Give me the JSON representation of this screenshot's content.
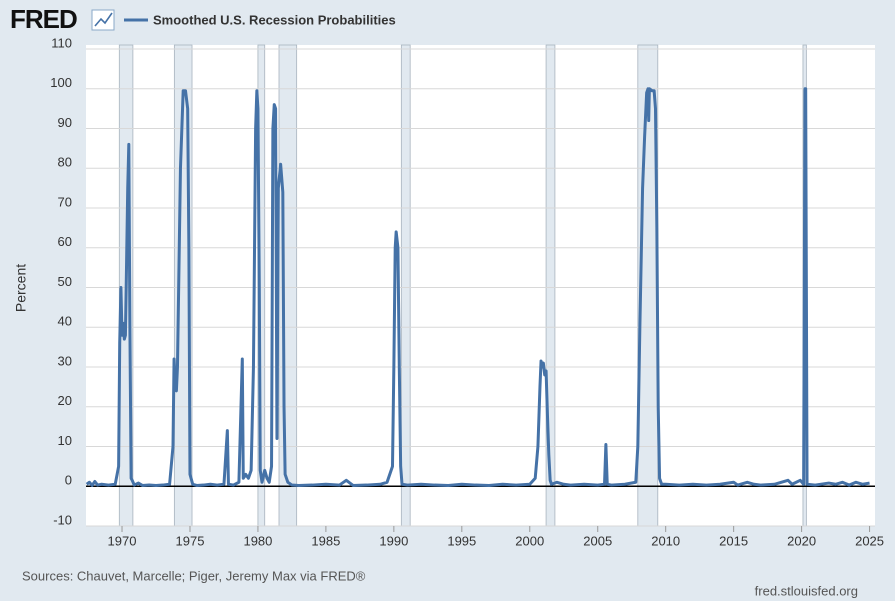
{
  "header": {
    "logo": "FRED"
  },
  "chart_data": {
    "type": "line",
    "y_label": "Percent",
    "xlim": [
      1967.35,
      2025.4
    ],
    "xticks": [
      1970,
      1975,
      1980,
      1985,
      1990,
      1995,
      2000,
      2005,
      2010,
      2015,
      2020,
      2025
    ],
    "ylim": [
      -10,
      110
    ],
    "yticks": [
      -10,
      0,
      10,
      20,
      30,
      40,
      50,
      60,
      70,
      80,
      90,
      100,
      110
    ],
    "grid": true,
    "recessions": [
      [
        1969.8,
        1970.8
      ],
      [
        1973.85,
        1975.15
      ],
      [
        1980.0,
        1980.5
      ],
      [
        1981.55,
        1982.85
      ],
      [
        1990.55,
        1991.2
      ],
      [
        2001.2,
        2001.85
      ],
      [
        2007.95,
        2009.42
      ],
      [
        2020.1,
        2020.35
      ]
    ],
    "x": [
      1967.4,
      1967.6,
      1967.8,
      1968.0,
      1968.2,
      1968.5,
      1969.0,
      1969.5,
      1969.75,
      1969.83,
      1969.92,
      1970.0,
      1970.08,
      1970.17,
      1970.25,
      1970.33,
      1970.42,
      1970.5,
      1970.58,
      1970.67,
      1970.75,
      1970.9,
      1971.2,
      1971.5,
      1972.0,
      1972.5,
      1973.0,
      1973.5,
      1973.75,
      1973.83,
      1973.92,
      1974.0,
      1974.08,
      1974.3,
      1974.5,
      1974.67,
      1974.83,
      1974.92,
      1975.0,
      1975.2,
      1975.5,
      1976.0,
      1976.5,
      1977.0,
      1977.5,
      1977.75,
      1977.83,
      1978.2,
      1978.6,
      1978.85,
      1978.92,
      1979.1,
      1979.3,
      1979.5,
      1979.67,
      1979.83,
      1979.92,
      1980.0,
      1980.1,
      1980.17,
      1980.3,
      1980.5,
      1980.67,
      1980.83,
      1981.0,
      1981.1,
      1981.2,
      1981.3,
      1981.4,
      1981.5,
      1981.67,
      1981.83,
      1981.92,
      1982.0,
      1982.2,
      1982.5,
      1983.0,
      1984.0,
      1985.0,
      1986.0,
      1986.5,
      1987.0,
      1988.0,
      1989.0,
      1989.5,
      1989.9,
      1990.0,
      1990.1,
      1990.17,
      1990.3,
      1990.4,
      1990.5,
      1990.6,
      1991.0,
      1992.0,
      1993.0,
      1994.0,
      1995.0,
      1996.0,
      1997.0,
      1998.0,
      1999.0,
      2000.0,
      2000.4,
      2000.6,
      2000.75,
      2000.83,
      2000.92,
      2001.0,
      2001.1,
      2001.2,
      2001.3,
      2001.4,
      2001.5,
      2001.6,
      2002.0,
      2002.5,
      2003.0,
      2004.0,
      2005.0,
      2005.5,
      2005.6,
      2005.7,
      2006.0,
      2007.0,
      2007.8,
      2007.95,
      2008.1,
      2008.3,
      2008.45,
      2008.6,
      2008.7,
      2008.75,
      2008.8,
      2009.0,
      2009.15,
      2009.25,
      2009.35,
      2009.45,
      2009.55,
      2009.7,
      2010.0,
      2011.0,
      2012.0,
      2013.0,
      2014.0,
      2015.0,
      2015.3,
      2016.0,
      2016.5,
      2017.0,
      2018.0,
      2019.0,
      2019.3,
      2019.9,
      2020.15,
      2020.25,
      2020.3,
      2020.4,
      2021.0,
      2022.0,
      2022.5,
      2023.0,
      2023.5,
      2024.0,
      2024.5,
      2025.0
    ],
    "series": [
      {
        "name": "Smoothed U.S. Recession Probabilities",
        "color": "#4572a7",
        "values": [
          0.5,
          1,
          0.2,
          1.2,
          0.3,
          0.5,
          0.3,
          0.5,
          5,
          36,
          50,
          38,
          41,
          37,
          38,
          55,
          75,
          86,
          40,
          2,
          1.5,
          0.3,
          0.8,
          0.2,
          0.3,
          0.2,
          0.3,
          0.5,
          10,
          32,
          26,
          24,
          30,
          80,
          99.5,
          99.5,
          95,
          60,
          3,
          0.5,
          0.2,
          0.3,
          0.5,
          0.3,
          0.5,
          14,
          0.5,
          0.3,
          1,
          32,
          2,
          3,
          2,
          4,
          30,
          90,
          99.5,
          95,
          50,
          4,
          1,
          4,
          2,
          1,
          5,
          90,
          96,
          95,
          12,
          75,
          81,
          74,
          20,
          3,
          1,
          0.3,
          0.2,
          0.3,
          0.5,
          0.3,
          1.5,
          0.2,
          0.3,
          0.5,
          1,
          5,
          30,
          60,
          64,
          60,
          30,
          5,
          0.5,
          0.3,
          0.5,
          0.3,
          0.2,
          0.5,
          0.3,
          0.2,
          0.5,
          0.3,
          0.5,
          2,
          10,
          25,
          31.5,
          30,
          31,
          28,
          29,
          18,
          8,
          1.5,
          0.5,
          1,
          0.5,
          0.3,
          0.5,
          0.3,
          0.5,
          10.5,
          0.5,
          0.3,
          0.5,
          1,
          10,
          40,
          75,
          88,
          99,
          100,
          92,
          100,
          99.5,
          99.5,
          95,
          65,
          20,
          2,
          0.5,
          0.5,
          0.3,
          0.5,
          0.3,
          0.5,
          1,
          0.3,
          1,
          0.5,
          0.3,
          0.5,
          1.5,
          0.5,
          1.5,
          0.5,
          100,
          100,
          0.5,
          0.3,
          0.8,
          0.5,
          1,
          0.3,
          1,
          0.5,
          0.8
        ]
      }
    ]
  },
  "footer": {
    "source": "Sources: Chauvet, Marcelle; Piger, Jeremy Max via FRED®",
    "url": "fred.stlouisfed.org"
  }
}
